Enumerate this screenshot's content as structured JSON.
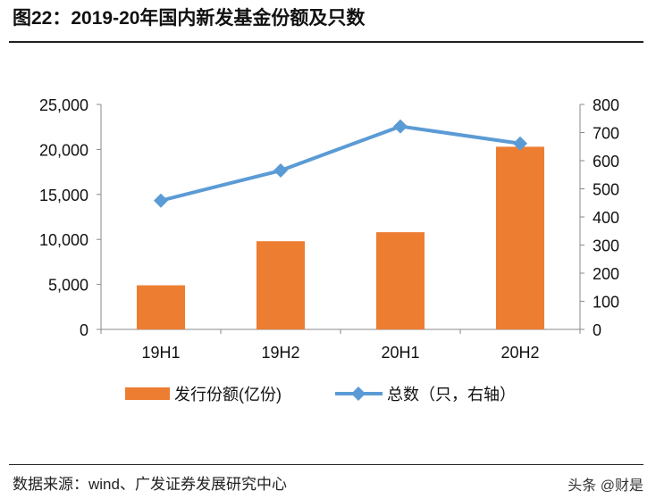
{
  "title": "图22：2019-20年国内新发基金份额及只数",
  "source": "数据来源：wind、广发证券发展研究中心",
  "watermark": "头条 @财是",
  "chart_data": {
    "type": "bar+line",
    "categories": [
      "19H1",
      "19H2",
      "20H1",
      "20H2"
    ],
    "series": [
      {
        "name": "发行份额(亿份)",
        "type": "bar",
        "axis": "left",
        "color": "#ED7D31",
        "values": [
          4900,
          9800,
          10800,
          20300
        ]
      },
      {
        "name": "总数（只，右轴）",
        "type": "line",
        "axis": "right",
        "color": "#5B9BD5",
        "values": [
          458,
          565,
          722,
          661
        ]
      }
    ],
    "y_left": {
      "range": [
        0,
        25000
      ],
      "ticks": [
        "0",
        "5,000",
        "10,000",
        "15,000",
        "20,000",
        "25,000"
      ]
    },
    "y_right": {
      "range": [
        0,
        800
      ],
      "ticks": [
        "0",
        "100",
        "200",
        "300",
        "400",
        "500",
        "600",
        "700",
        "800"
      ]
    },
    "grid": false,
    "legend": "bottom"
  }
}
